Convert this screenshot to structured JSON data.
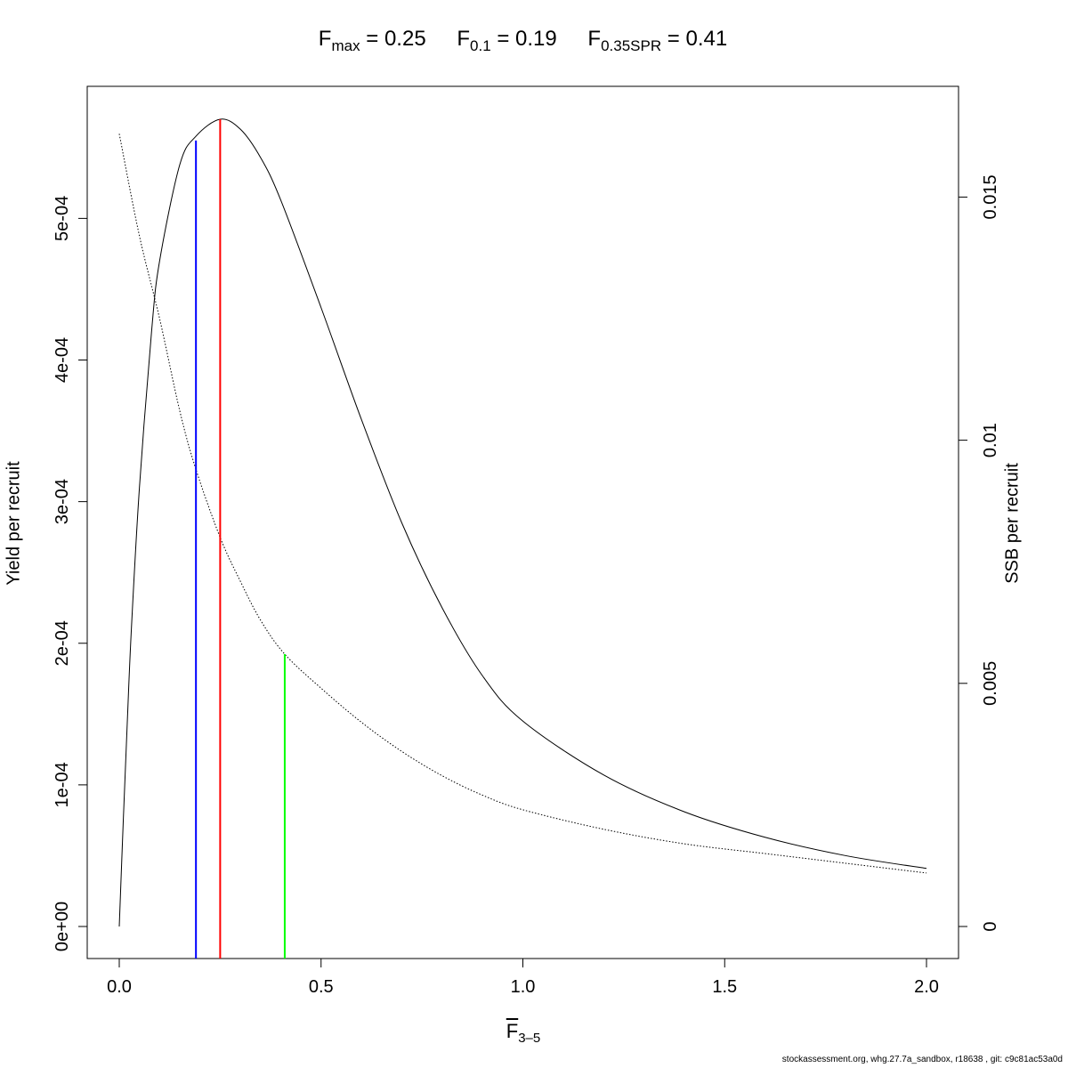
{
  "title": {
    "fmax": {
      "base": "F",
      "sub": "max",
      "eq": " = ",
      "value": "0.25"
    },
    "f01": {
      "base": "F",
      "sub": "0.1",
      "eq": " = ",
      "value": "0.19"
    },
    "fspr": {
      "base": "F",
      "sub": "0.35SPR",
      "eq": " = ",
      "value": "0.41"
    }
  },
  "chart_data": {
    "type": "line",
    "xlabel": {
      "base": "F",
      "sub": "3–5"
    },
    "ylabel_left": "Yield per recruit",
    "ylabel_right": "SSB per recruit",
    "xlim": [
      0,
      2
    ],
    "ylim_left": [
      0,
      0.00057
    ],
    "ylim_right": [
      0,
      0.0166
    ],
    "x_ticks": [
      "0.0",
      "0.5",
      "1.0",
      "1.5",
      "2.0"
    ],
    "x_tick_values": [
      0,
      0.5,
      1.0,
      1.5,
      2.0
    ],
    "y_left_ticks": [
      "0e+00",
      "1e-04",
      "2e-04",
      "3e-04",
      "4e-04",
      "5e-04"
    ],
    "y_left_tick_values": [
      0,
      0.0001,
      0.0002,
      0.0003,
      0.0004,
      0.0005
    ],
    "y_right_ticks": [
      "0",
      "0.005",
      "0.01",
      "0.015"
    ],
    "y_right_tick_values": [
      0,
      0.005,
      0.01,
      0.015
    ],
    "series": [
      {
        "role": "yield",
        "axis": "left",
        "style": "solid",
        "color": "#000000",
        "x": [
          0,
          0.01,
          0.02,
          0.03,
          0.05,
          0.08,
          0.1,
          0.15,
          0.19,
          0.25,
          0.3,
          0.35,
          0.4,
          0.5,
          0.6,
          0.7,
          0.8,
          0.9,
          1.0,
          1.2,
          1.4,
          1.6,
          1.8,
          2.0
        ],
        "y": [
          0,
          7.5e-05,
          0.000145,
          0.00021,
          0.00031,
          0.00042,
          0.00047,
          0.000538,
          0.000558,
          0.00057,
          0.000563,
          0.000543,
          0.000513,
          0.000437,
          0.000358,
          0.000285,
          0.000225,
          0.000177,
          0.000145,
          0.000107,
          8.1e-05,
          6.3e-05,
          5e-05,
          4.1e-05
        ]
      },
      {
        "role": "ssb",
        "axis": "right",
        "style": "dotted",
        "color": "#000000",
        "x": [
          0,
          0.05,
          0.1,
          0.15,
          0.19,
          0.25,
          0.3,
          0.35,
          0.41,
          0.5,
          0.6,
          0.7,
          0.8,
          0.9,
          1.0,
          1.2,
          1.4,
          1.6,
          1.8,
          2.0
        ],
        "y": [
          0.0163,
          0.0142,
          0.0125,
          0.0106,
          0.0094,
          0.008,
          0.0071,
          0.0063,
          0.0056,
          0.0049,
          0.0042,
          0.0036,
          0.0031,
          0.0027,
          0.0024,
          0.002,
          0.0017,
          0.0015,
          0.0013,
          0.0011
        ]
      }
    ],
    "reference_lines": [
      {
        "name": "F0.1",
        "x": 0.19,
        "axis": "left",
        "y_top": 0.000555,
        "color": "#0000ff"
      },
      {
        "name": "Fmax",
        "x": 0.25,
        "axis": "left",
        "y_top": 0.00057,
        "color": "#ff0000"
      },
      {
        "name": "F0.35SPR",
        "x": 0.41,
        "axis": "right",
        "y_top": 0.0056,
        "color": "#00ff00"
      }
    ]
  },
  "footer": "stockassessment.org, whg.27.7a_sandbox, r18638 , git: c9c81ac53a0d"
}
